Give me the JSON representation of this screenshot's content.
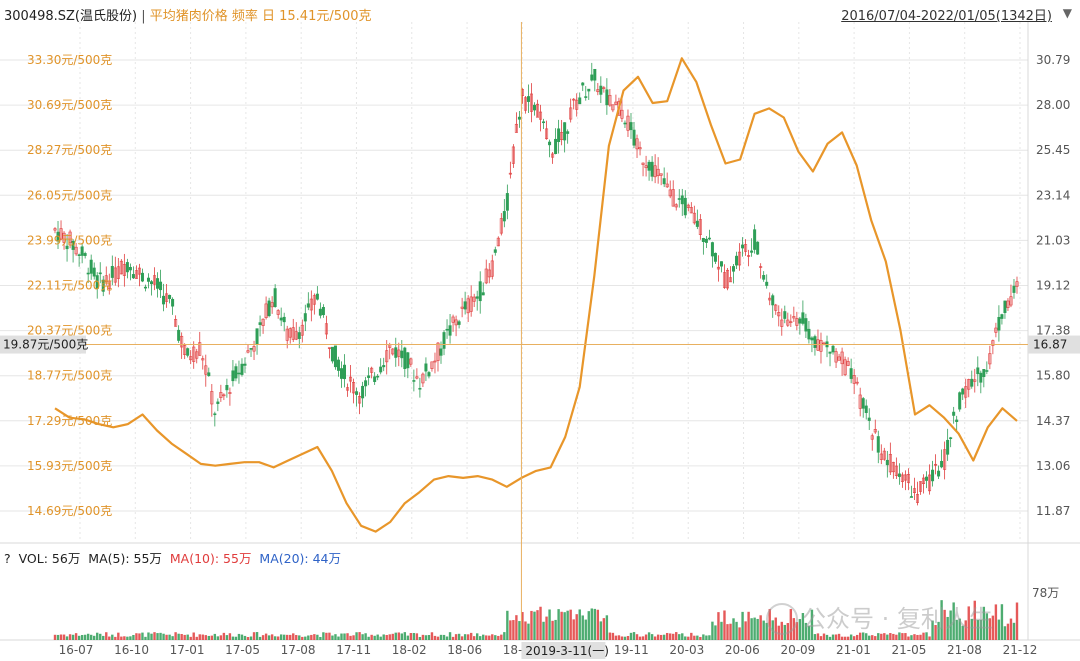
{
  "header": {
    "stock_label": "300498.SZ(温氏股份)",
    "separator": "|",
    "overlay_label": "平均猪肉价格 频率 日 15.41元/500克",
    "date_range": "2016/07/04-2022/01/05(1342日)",
    "dropdown_icon": "triangle-down-icon"
  },
  "crosshair": {
    "left_value": "19.87元/500克",
    "right_value": "16.87",
    "date_label": "2019-3-11(一)"
  },
  "volume_panel": {
    "help": "?",
    "vol_label": "VOL: 56万",
    "ma5_label": "MA(5): 55万",
    "ma10_label": "MA(10): 55万",
    "ma20_label": "MA(20): 44万",
    "axis_label": "78万"
  },
  "watermark": "公众号 · 复利人生",
  "colors": {
    "pork_line": "#e8962a",
    "up_candle": "#e03c3c",
    "down_candle": "#2e9e57",
    "grid": "#e6e6e6",
    "crosshair": "#e8b060"
  },
  "chart_data": {
    "type": "line",
    "left_axis": {
      "ticks": [
        "33.30元/500克",
        "30.69元/500克",
        "28.27元/500克",
        "26.05元/500克",
        "23.99元/500克",
        "22.11元/500克",
        "20.37元/500克",
        "18.77元/500克",
        "17.29元/500克",
        "15.93元/500克",
        "14.69元/500克"
      ],
      "scale": "log"
    },
    "right_axis": {
      "ticks": [
        "30.79",
        "28.00",
        "25.45",
        "23.14",
        "21.03",
        "19.12",
        "17.38",
        "15.80",
        "14.37",
        "13.06",
        "11.87"
      ],
      "scale": "log"
    },
    "x_ticks": [
      "16-07",
      "16-10",
      "17-01",
      "17-05",
      "17-08",
      "17-11",
      "18-02",
      "18-06",
      "18-09",
      "19-0",
      "19-11",
      "20-03",
      "20-06",
      "20-09",
      "21-01",
      "21-05",
      "21-08",
      "21-12"
    ],
    "series": [
      {
        "name": "平均猪肉价格",
        "kind": "line",
        "points": [
          [
            "2016-07",
            17.7
          ],
          [
            "2016-08",
            17.4
          ],
          [
            "2016-09",
            17.35
          ],
          [
            "2016-10",
            17.2
          ],
          [
            "2016-11",
            17.1
          ],
          [
            "2016-12",
            17.2
          ],
          [
            "2017-01",
            17.5
          ],
          [
            "2017-02",
            17.0
          ],
          [
            "2017-03",
            16.6
          ],
          [
            "2017-04",
            16.3
          ],
          [
            "2017-05",
            16.0
          ],
          [
            "2017-06",
            15.95
          ],
          [
            "2017-07",
            16.0
          ],
          [
            "2017-08",
            16.05
          ],
          [
            "2017-09",
            16.05
          ],
          [
            "2017-10",
            15.9
          ],
          [
            "2017-11",
            16.1
          ],
          [
            "2017-12",
            16.3
          ],
          [
            "2018-01",
            16.5
          ],
          [
            "2018-02",
            15.8
          ],
          [
            "2018-03",
            14.9
          ],
          [
            "2018-04",
            14.3
          ],
          [
            "2018-05",
            14.15
          ],
          [
            "2018-06",
            14.4
          ],
          [
            "2018-07",
            14.9
          ],
          [
            "2018-08",
            15.2
          ],
          [
            "2018-09",
            15.55
          ],
          [
            "2018-10",
            15.65
          ],
          [
            "2018-11",
            15.6
          ],
          [
            "2018-12",
            15.65
          ],
          [
            "2019-01",
            15.55
          ],
          [
            "2019-02",
            15.35
          ],
          [
            "2019-03",
            15.6
          ],
          [
            "2019-04",
            15.8
          ],
          [
            "2019-05",
            15.9
          ],
          [
            "2019-06",
            16.8
          ],
          [
            "2019-07",
            18.4
          ],
          [
            "2019-08",
            22.5
          ],
          [
            "2019-09",
            28.5
          ],
          [
            "2019-10",
            31.5
          ],
          [
            "2019-11",
            32.3
          ],
          [
            "2019-12",
            30.8
          ],
          [
            "2020-01",
            30.9
          ],
          [
            "2020-02",
            33.4
          ],
          [
            "2020-03",
            32.0
          ],
          [
            "2020-04",
            29.6
          ],
          [
            "2020-05",
            27.6
          ],
          [
            "2020-06",
            27.8
          ],
          [
            "2020-07",
            30.2
          ],
          [
            "2020-08",
            30.5
          ],
          [
            "2020-09",
            30.0
          ],
          [
            "2020-10",
            28.2
          ],
          [
            "2020-11",
            27.2
          ],
          [
            "2020-12",
            28.6
          ],
          [
            "2021-01",
            29.2
          ],
          [
            "2021-02",
            27.5
          ],
          [
            "2021-03",
            24.9
          ],
          [
            "2021-04",
            23.1
          ],
          [
            "2021-05",
            20.4
          ],
          [
            "2021-06",
            17.5
          ],
          [
            "2021-07",
            17.8
          ],
          [
            "2021-08",
            17.4
          ],
          [
            "2021-09",
            16.9
          ],
          [
            "2021-10",
            16.1
          ],
          [
            "2021-11",
            17.1
          ],
          [
            "2021-12",
            17.7
          ],
          [
            "2022-01",
            17.3
          ]
        ]
      },
      {
        "name": "300498.SZ(温氏股份)",
        "kind": "candlestick_monthly_close",
        "points": [
          [
            "2016-07",
            21.5
          ],
          [
            "2016-08",
            21.0
          ],
          [
            "2016-09",
            20.3
          ],
          [
            "2016-10",
            19.2
          ],
          [
            "2016-11",
            19.5
          ],
          [
            "2016-12",
            20.1
          ],
          [
            "2017-01",
            19.5
          ],
          [
            "2017-02",
            19.1
          ],
          [
            "2017-03",
            18.3
          ],
          [
            "2017-04",
            16.4
          ],
          [
            "2017-05",
            16.8
          ],
          [
            "2017-06",
            14.6
          ],
          [
            "2017-07",
            15.5
          ],
          [
            "2017-08",
            16.3
          ],
          [
            "2017-09",
            17.3
          ],
          [
            "2017-10",
            18.8
          ],
          [
            "2017-11",
            17.1
          ],
          [
            "2017-12",
            17.6
          ],
          [
            "2018-01",
            18.7
          ],
          [
            "2018-02",
            16.7
          ],
          [
            "2018-03",
            15.7
          ],
          [
            "2018-04",
            15.2
          ],
          [
            "2018-05",
            15.9
          ],
          [
            "2018-06",
            16.8
          ],
          [
            "2018-07",
            16.4
          ],
          [
            "2018-08",
            15.6
          ],
          [
            "2018-09",
            16.3
          ],
          [
            "2018-10",
            17.3
          ],
          [
            "2018-11",
            18.1
          ],
          [
            "2018-12",
            18.7
          ],
          [
            "2019-01",
            19.9
          ],
          [
            "2019-02",
            22.6
          ],
          [
            "2019-03",
            28.4
          ],
          [
            "2019-04",
            28.0
          ],
          [
            "2019-05",
            25.4
          ],
          [
            "2019-06",
            26.6
          ],
          [
            "2019-07",
            28.6
          ],
          [
            "2019-08",
            29.6
          ],
          [
            "2019-09",
            28.2
          ],
          [
            "2019-10",
            27.6
          ],
          [
            "2019-11",
            25.4
          ],
          [
            "2019-12",
            24.6
          ],
          [
            "2020-01",
            23.4
          ],
          [
            "2020-02",
            22.7
          ],
          [
            "2020-03",
            21.9
          ],
          [
            "2020-04",
            20.9
          ],
          [
            "2020-05",
            19.3
          ],
          [
            "2020-06",
            20.4
          ],
          [
            "2020-07",
            21.1
          ],
          [
            "2020-08",
            18.7
          ],
          [
            "2020-09",
            17.7
          ],
          [
            "2020-10",
            17.9
          ],
          [
            "2020-11",
            17.2
          ],
          [
            "2020-12",
            16.7
          ],
          [
            "2021-01",
            16.4
          ],
          [
            "2021-02",
            15.3
          ],
          [
            "2021-03",
            14.2
          ],
          [
            "2021-04",
            13.2
          ],
          [
            "2021-05",
            13.0
          ],
          [
            "2021-06",
            12.3
          ],
          [
            "2021-07",
            12.6
          ],
          [
            "2021-08",
            13.2
          ],
          [
            "2021-09",
            14.9
          ],
          [
            "2021-10",
            15.6
          ],
          [
            "2021-11",
            16.2
          ],
          [
            "2021-12",
            18.2
          ],
          [
            "2022-01",
            19.0
          ]
        ]
      }
    ]
  }
}
